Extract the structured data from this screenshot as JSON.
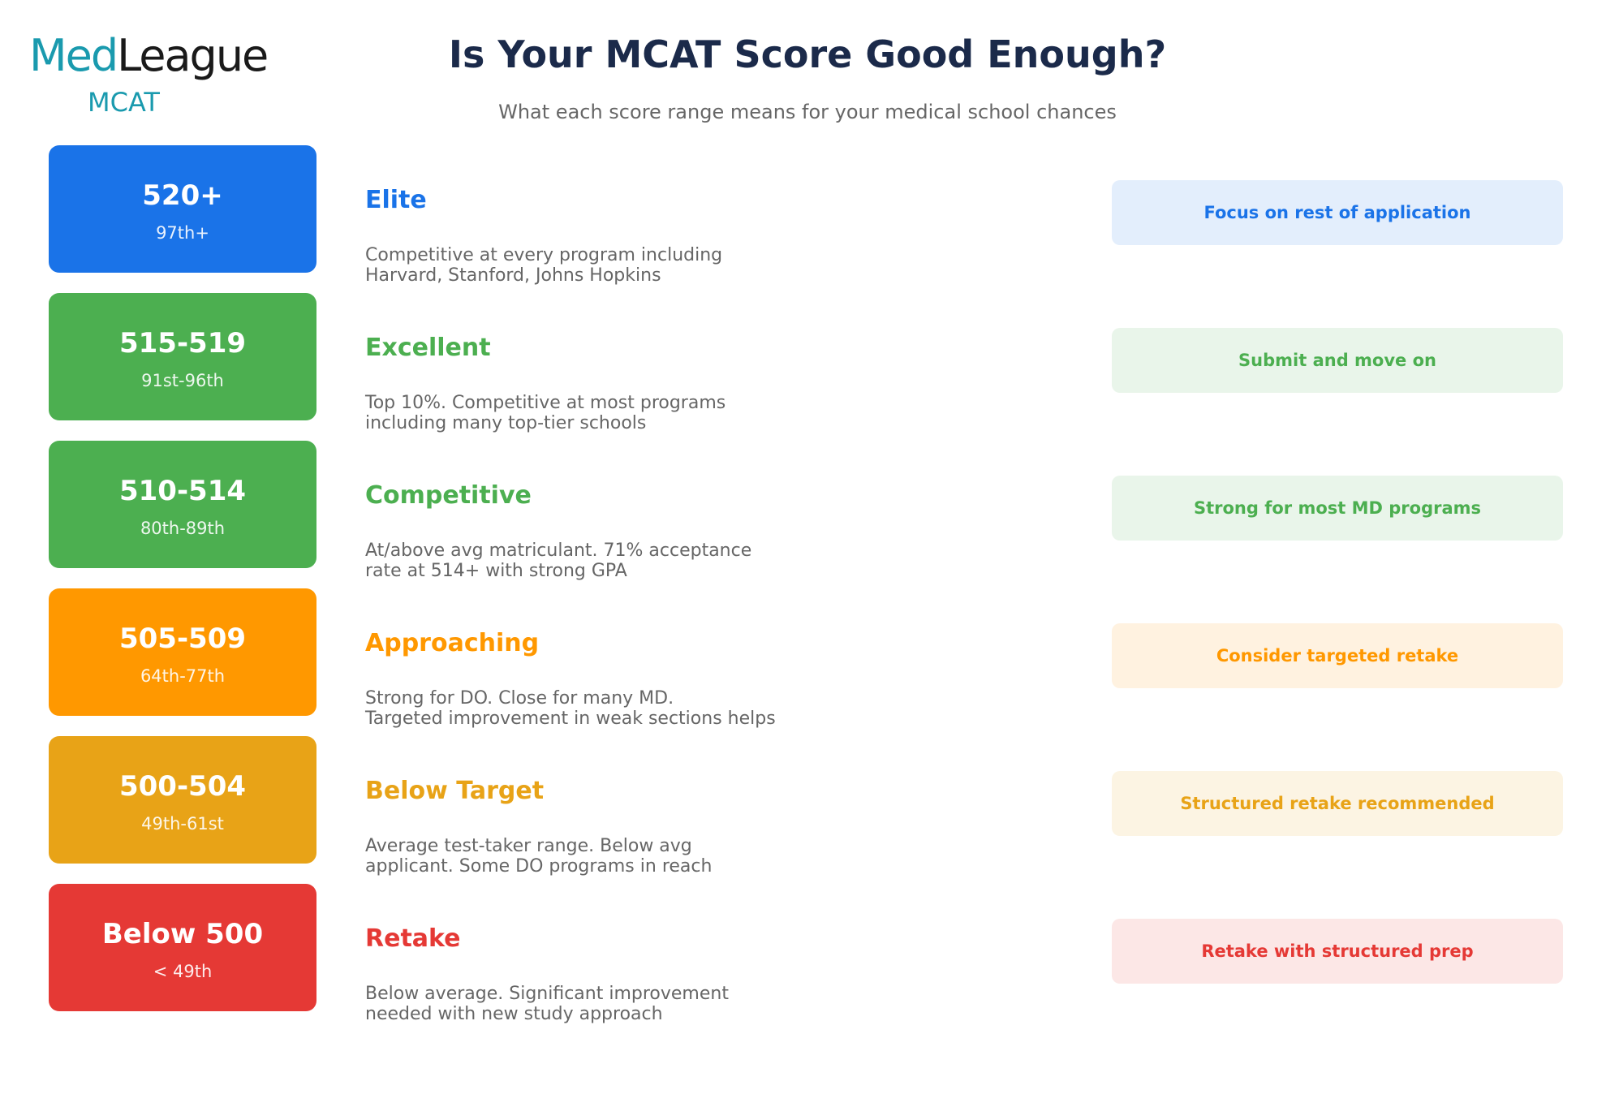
{
  "logo": {
    "brand_first": "Med",
    "brand_second": "League",
    "product": "MCAT"
  },
  "header": {
    "title": "Is Your MCAT Score Good Enough?",
    "subtitle": "What each score range means for your medical school chances"
  },
  "rows": [
    {
      "score": "520+",
      "percentile": "97th+",
      "label": "Elite",
      "description": [
        "Competitive at every program including",
        "Harvard, Stanford, Johns Hopkins"
      ],
      "action": "Focus on rest of application",
      "color": "#1a73e8"
    },
    {
      "score": "515-519",
      "percentile": "91st-96th",
      "label": "Excellent",
      "description": [
        "Top 10%. Competitive at most programs",
        "including many top-tier schools"
      ],
      "action": "Submit and move on",
      "color": "#4caf50"
    },
    {
      "score": "510-514",
      "percentile": "80th-89th",
      "label": "Competitive",
      "description": [
        "At/above avg matriculant. 71% acceptance",
        "rate at 514+ with strong GPA"
      ],
      "action": "Strong for most MD programs",
      "color": "#4caf50"
    },
    {
      "score": "505-509",
      "percentile": "64th-77th",
      "label": "Approaching",
      "description": [
        "Strong for DO. Close for many MD.",
        "Targeted improvement in weak sections helps"
      ],
      "action": "Consider targeted retake",
      "color": "#ff9800"
    },
    {
      "score": "500-504",
      "percentile": "49th-61st",
      "label": "Below Target",
      "description": [
        "Average test-taker range. Below avg",
        "applicant. Some DO programs in reach"
      ],
      "action": "Structured retake recommended",
      "color": "#e8a317"
    },
    {
      "score": "Below 500",
      "percentile": "< 49th",
      "label": "Retake",
      "description": [
        "Below average. Significant improvement",
        "needed with new study approach"
      ],
      "action": "Retake with structured prep",
      "color": "#e53935"
    }
  ]
}
